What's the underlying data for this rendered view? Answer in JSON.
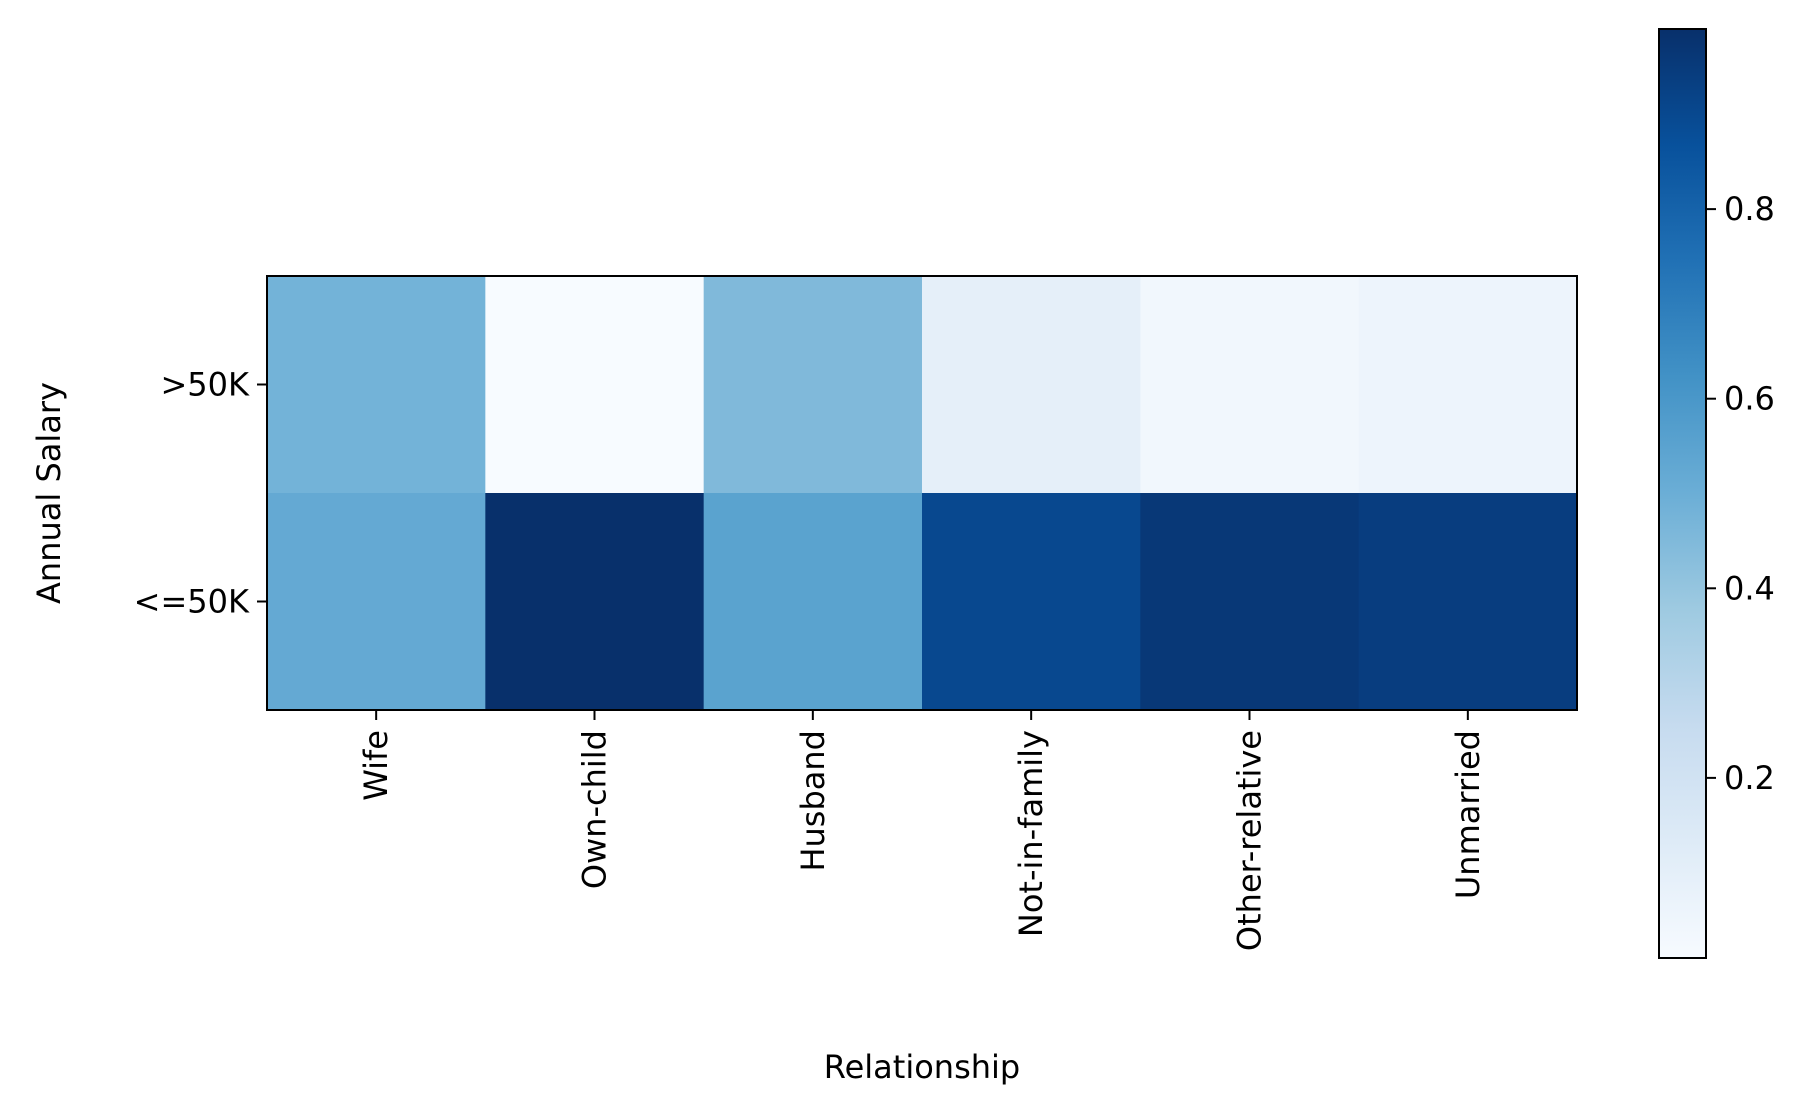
{
  "chart_data": {
    "type": "heatmap",
    "title": "",
    "xlabel": "Relationship",
    "ylabel": "Annual Salary",
    "x_categories": [
      "Wife",
      "Own-child",
      "Husband",
      "Not-in-family",
      "Other-relative",
      "Unmarried"
    ],
    "y_categories": [
      ">50K",
      "<=50K"
    ],
    "values": [
      [
        0.48,
        0.01,
        0.45,
        0.1,
        0.04,
        0.06
      ],
      [
        0.52,
        0.99,
        0.55,
        0.9,
        0.96,
        0.94
      ]
    ],
    "colormap": "Blues",
    "colormap_stops": [
      "#f7fbff",
      "#deebf7",
      "#c6dbef",
      "#9ecae1",
      "#6baed6",
      "#4292c6",
      "#2171b5",
      "#08519c",
      "#08306b"
    ],
    "colorbar": {
      "range": [
        0.01,
        0.99
      ],
      "ticks": [
        0.2,
        0.4,
        0.6,
        0.8
      ],
      "tick_labels": [
        "0.2",
        "0.4",
        "0.6",
        "0.8"
      ]
    },
    "grid": false,
    "legend": "colorbar-right"
  }
}
